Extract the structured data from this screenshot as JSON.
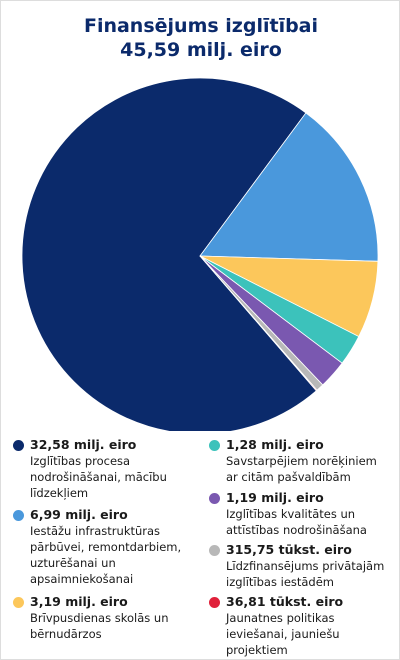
{
  "chart_data": {
    "type": "pie",
    "title": "Finansējums izglītībai",
    "subtitle": "45,59 milj. eiro",
    "categories": [
      "Izglītības procesa nodrošināšanai, mācību līdzekļiem",
      "Iestāžu infrastruktūras pārbūvei, remontdarbiem, uzturēšanai un apsaimniekošanai",
      "Brīvpusdienas skolās un bērnudārzos",
      "Savstarpējiem norēķiniem ar citām pašvaldībām",
      "Izglītības kvalitātes un attīstības nodrošināšana",
      "Līdzfinansējums privātajām izglītības iestādēm",
      "Jaunatnes politikas ieviešanai, jauniešu projektiem"
    ],
    "values": [
      32.58,
      6.99,
      3.19,
      1.28,
      1.19,
      0.31575,
      0.03681
    ],
    "value_labels": [
      "32,58 milj. eiro",
      "6,99 milj. eiro",
      "3,19 milj. eiro",
      "1,28 milj. eiro",
      "1,19 milj. eiro",
      "315,75 tūkst. eiro",
      "36,81 tūkst. eiro"
    ],
    "colors": [
      "#0b2a6b",
      "#4a98dc",
      "#fcc75b",
      "#3cc2bb",
      "#7a58b0",
      "#b8b8b8",
      "#e0203a"
    ]
  }
}
